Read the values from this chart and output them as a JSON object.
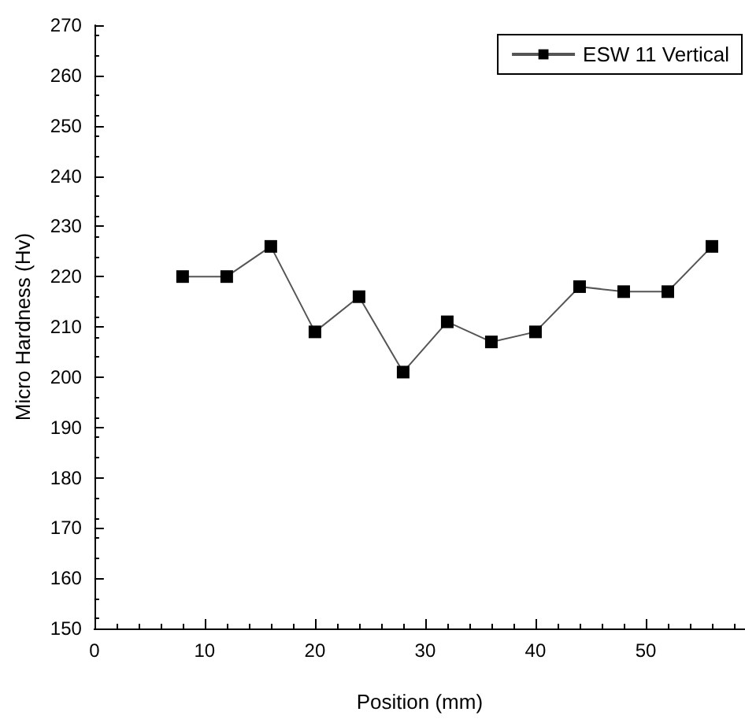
{
  "chart_data": {
    "type": "line",
    "xlabel": "Position (mm)",
    "ylabel": "Micro Hardness (Hv)",
    "x": [
      8,
      12,
      16,
      20,
      24,
      28,
      32,
      36,
      40,
      44,
      48,
      52,
      56
    ],
    "series": [
      {
        "name": "ESW 11 Vertical",
        "color": "#000000",
        "values": [
          220,
          220,
          226,
          209,
          216,
          201,
          211,
          207,
          209,
          218,
          217,
          217,
          226
        ]
      }
    ],
    "xlim": [
      0,
      59
    ],
    "xticks": [
      0,
      10,
      20,
      30,
      40,
      50
    ],
    "ylim": [
      150,
      270
    ],
    "yticks": [
      150,
      160,
      170,
      180,
      190,
      200,
      210,
      220,
      230,
      240,
      250,
      260,
      270
    ],
    "grid": false,
    "legend": "top right",
    "marker": "square",
    "line_style": "solid"
  }
}
